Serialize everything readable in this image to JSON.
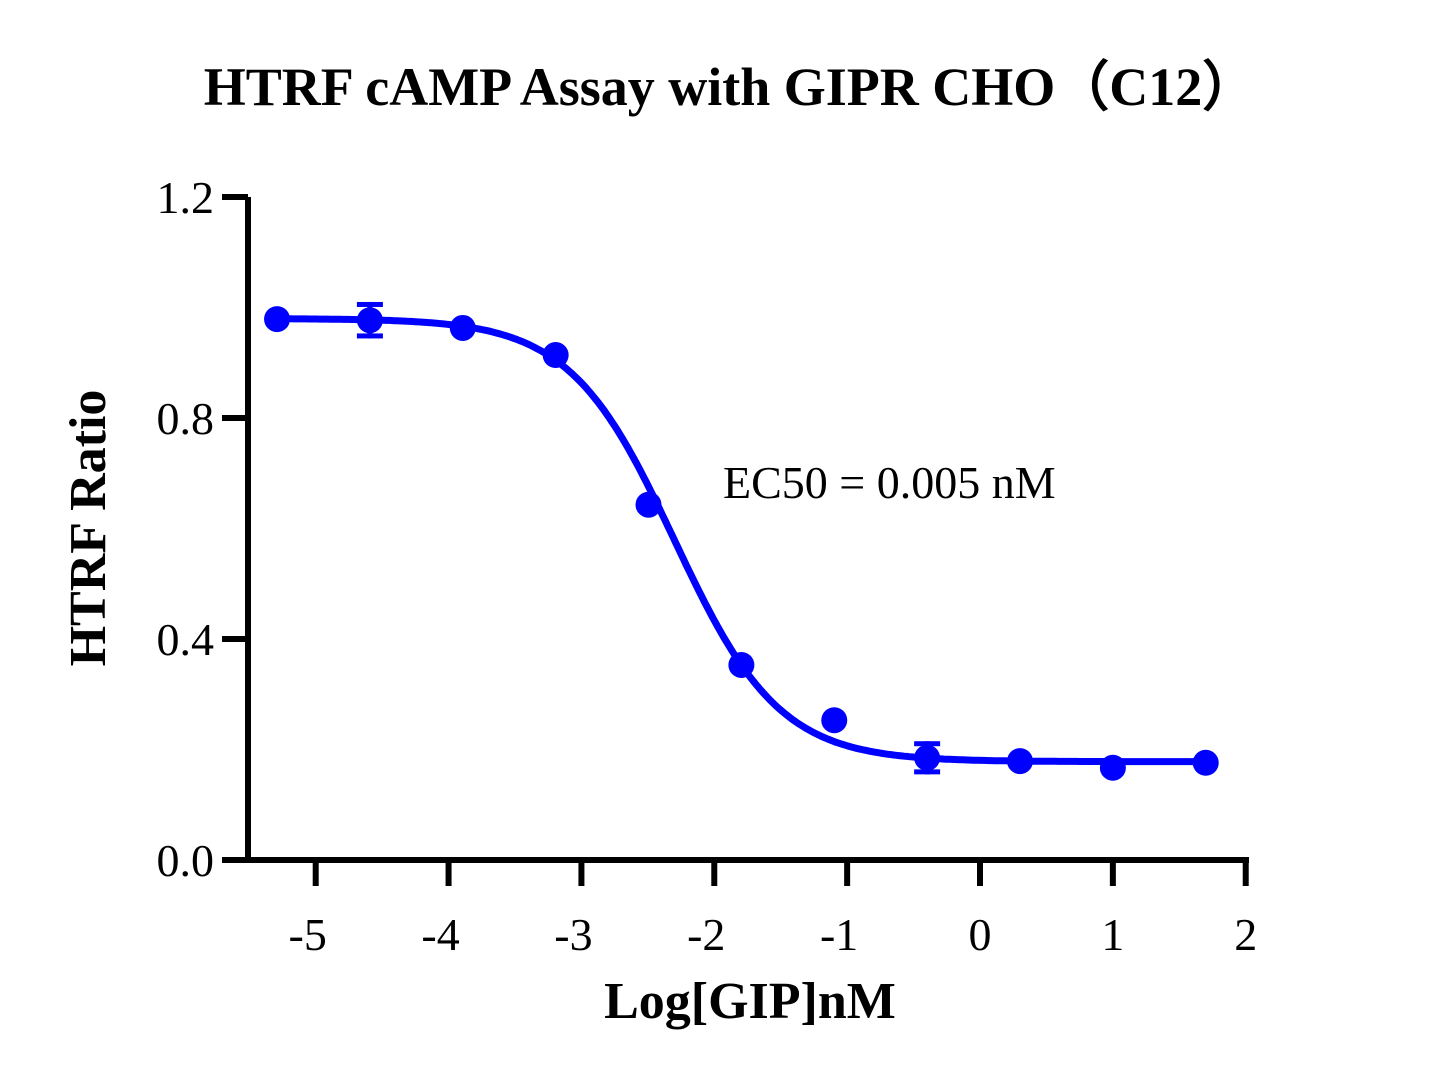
{
  "chart_data": {
    "type": "scatter",
    "title": "HTRF cAMP Assay with GIPR CHO（C12）",
    "xlabel": "Log[GIP]nM",
    "ylabel": "HTRF Ratio",
    "xlim": [
      -5.6,
      2
    ],
    "ylim": [
      0,
      1.2
    ],
    "x_ticks": [
      -5,
      -4,
      -3,
      -2,
      -1,
      0,
      1,
      2
    ],
    "x_tick_labels": [
      "-5",
      "-4",
      "-3",
      "-2",
      "-1",
      "0",
      "1",
      "2"
    ],
    "y_ticks": [
      0,
      0.4,
      0.8,
      1.2
    ],
    "y_tick_labels": [
      "0.0",
      "0.4",
      "0.8",
      "1.2"
    ],
    "grid": false,
    "color": "#0000ff",
    "annotation": "EC50 = 0.005 nM",
    "points": {
      "x": [
        -5.291,
        -4.592,
        -3.893,
        -3.194,
        -2.495,
        -1.796,
        -1.097,
        -0.398,
        0.301,
        1.0,
        1.699
      ],
      "y": [
        0.979,
        0.977,
        0.963,
        0.914,
        0.643,
        0.353,
        0.253,
        0.185,
        0.179,
        0.167,
        0.176
      ],
      "error": [
        0,
        0.033,
        0,
        0,
        0,
        0,
        0,
        0.03,
        0,
        0,
        0
      ]
    },
    "fit": {
      "model": "four-parameter logistic",
      "top": 0.98,
      "bottom": 0.178,
      "logEC50": -2.3,
      "hill_slope": -1.1
    }
  }
}
